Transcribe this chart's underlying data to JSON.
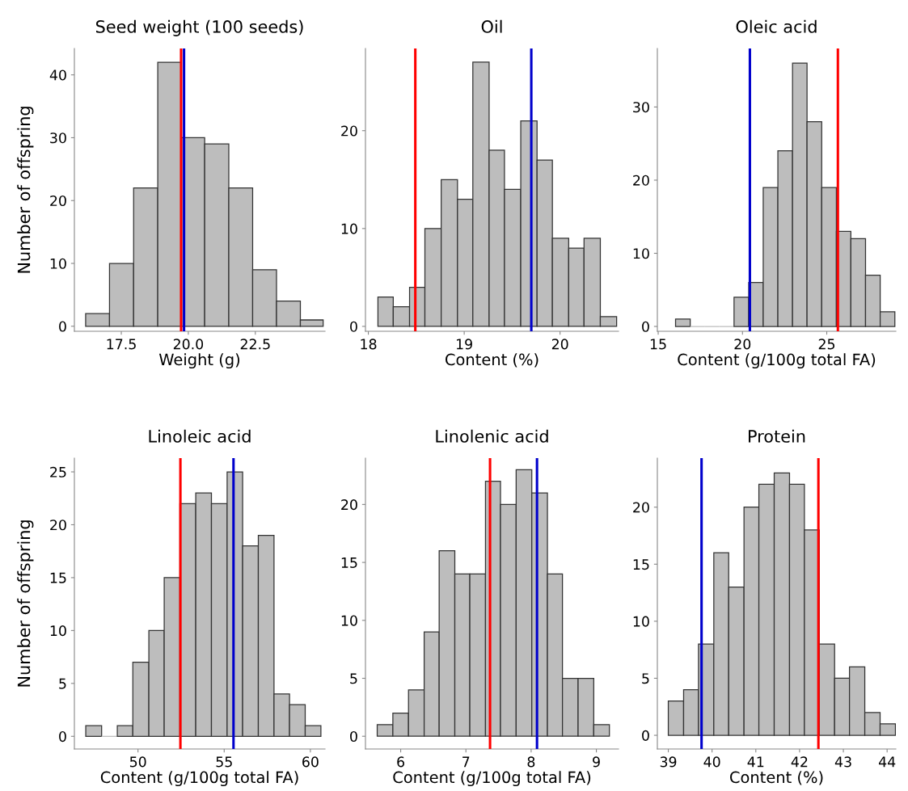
{
  "chart_data": [
    {
      "type": "histogram",
      "title": "Seed weight (100 seeds)",
      "xlabel": "Weight (g)",
      "ylabel": "Number of offspring",
      "color": "#bdbdbd",
      "bins": [
        16.17,
        17.06,
        17.96,
        18.86,
        19.73,
        20.61,
        21.51,
        22.4,
        23.29,
        24.18,
        25.03
      ],
      "values": [
        2,
        10,
        22,
        42,
        30,
        29,
        22,
        9,
        4,
        1
      ],
      "xlim": [
        15.75,
        25.1
      ],
      "ylim": [
        -0.8,
        44.2
      ],
      "xticks": [
        17.5,
        {
          "value": 20,
          "label": "20.0"
        },
        22.5
      ],
      "yticks": [
        0,
        10,
        20,
        30,
        40
      ],
      "ref_lines": [
        {
          "axis": "x",
          "value": 19.73,
          "color": "#ff0000"
        },
        {
          "axis": "x",
          "value": 19.84,
          "color": "#0000cc"
        }
      ],
      "grid": false
    },
    {
      "type": "histogram",
      "title": "Oil",
      "xlabel": "Content (%)",
      "color": "#bdbdbd",
      "bins": [
        18.1,
        18.26,
        18.43,
        18.59,
        18.76,
        18.93,
        19.09,
        19.26,
        19.42,
        19.59,
        19.76,
        19.92,
        20.09,
        20.25,
        20.42,
        20.59
      ],
      "values": [
        3,
        2,
        4,
        10,
        15,
        13,
        27,
        18,
        14,
        21,
        17,
        9,
        8,
        9,
        1
      ],
      "xlim": [
        17.97,
        20.61
      ],
      "ylim": [
        -0.5,
        28.4
      ],
      "xticks": [
        18,
        19,
        20
      ],
      "yticks": [
        0,
        10,
        20
      ],
      "ref_lines": [
        {
          "axis": "x",
          "value": 18.49,
          "color": "#ff0000"
        },
        {
          "axis": "x",
          "value": 19.7,
          "color": "#0000cc"
        }
      ],
      "grid": false
    },
    {
      "type": "histogram",
      "title": "Oleic acid",
      "xlabel": "Content (g/100g total FA)",
      "color": "#bdbdbd",
      "bins": [
        16.03,
        16.9,
        17.77,
        18.63,
        19.5,
        20.37,
        21.23,
        22.1,
        22.97,
        23.83,
        24.7,
        25.57,
        26.43,
        27.3,
        28.17,
        29.04
      ],
      "values": [
        1,
        0,
        0,
        0,
        4,
        6,
        19,
        24,
        36,
        28,
        19,
        13,
        12,
        7,
        2
      ],
      "xlim": [
        14.95,
        29.1
      ],
      "ylim": [
        -0.66,
        38
      ],
      "xticks": [
        15,
        20,
        25
      ],
      "yticks": [
        0,
        10,
        20,
        30
      ],
      "ref_lines": [
        {
          "axis": "x",
          "value": 20.44,
          "color": "#0000cc"
        },
        {
          "axis": "x",
          "value": 25.66,
          "color": "#ff0000"
        }
      ],
      "grid": false
    },
    {
      "type": "histogram",
      "title": "Linoleic acid",
      "xlabel": "Content (g/100g total FA)",
      "ylabel": "Number of offspring",
      "color": "#bdbdbd",
      "bins": [
        46.97,
        47.89,
        48.8,
        49.7,
        50.63,
        51.52,
        52.43,
        53.35,
        54.26,
        55.17,
        56.07,
        56.98,
        57.89,
        58.79,
        59.7,
        60.61
      ],
      "values": [
        1,
        0,
        1,
        7,
        10,
        15,
        22,
        23,
        22,
        25,
        18,
        19,
        4,
        3,
        1
      ],
      "xlim": [
        46.31,
        60.85
      ],
      "ylim": [
        -1.2,
        26.3
      ],
      "xticks": [
        50,
        55,
        60
      ],
      "yticks": [
        0,
        5,
        10,
        15,
        20,
        25
      ],
      "ref_lines": [
        {
          "axis": "x",
          "value": 52.46,
          "color": "#ff0000"
        },
        {
          "axis": "x",
          "value": 55.54,
          "color": "#0000cc"
        }
      ],
      "grid": false
    },
    {
      "type": "histogram",
      "title": "Linolenic acid",
      "xlabel": "Content (g/100g total FA)",
      "color": "#bdbdbd",
      "bins": [
        5.64,
        5.88,
        6.12,
        6.36,
        6.59,
        6.83,
        7.06,
        7.3,
        7.53,
        7.77,
        8.01,
        8.25,
        8.48,
        8.72,
        8.96,
        9.2
      ],
      "values": [
        1,
        2,
        4,
        9,
        16,
        14,
        14,
        22,
        20,
        23,
        21,
        14,
        5,
        5,
        1
      ],
      "xlim": [
        5.46,
        9.34
      ],
      "ylim": [
        -1.1,
        24
      ],
      "xticks": [
        6,
        7,
        8,
        9
      ],
      "yticks": [
        0,
        5,
        10,
        15,
        20
      ],
      "ref_lines": [
        {
          "axis": "x",
          "value": 7.37,
          "color": "#ff0000"
        },
        {
          "axis": "x",
          "value": 8.09,
          "color": "#0000cc"
        }
      ],
      "grid": false
    },
    {
      "type": "histogram",
      "title": "Protein",
      "xlabel": "Content (%)",
      "color": "#bdbdbd",
      "bins": [
        39.0,
        39.35,
        39.69,
        40.04,
        40.38,
        40.73,
        41.07,
        41.42,
        41.77,
        42.11,
        42.45,
        42.8,
        43.14,
        43.49,
        43.84,
        44.19
      ],
      "values": [
        3,
        4,
        8,
        16,
        13,
        20,
        22,
        23,
        22,
        18,
        8,
        5,
        6,
        2,
        1
      ],
      "xlim": [
        38.75,
        44.2
      ],
      "ylim": [
        -1.2,
        24.3
      ],
      "xticks": [
        39,
        40,
        41,
        42,
        43,
        44
      ],
      "yticks": [
        0,
        5,
        10,
        15,
        20
      ],
      "ref_lines": [
        {
          "axis": "x",
          "value": 39.76,
          "color": "#0000cc"
        },
        {
          "axis": "x",
          "value": 42.43,
          "color": "#ff0000"
        }
      ],
      "grid": false
    }
  ]
}
